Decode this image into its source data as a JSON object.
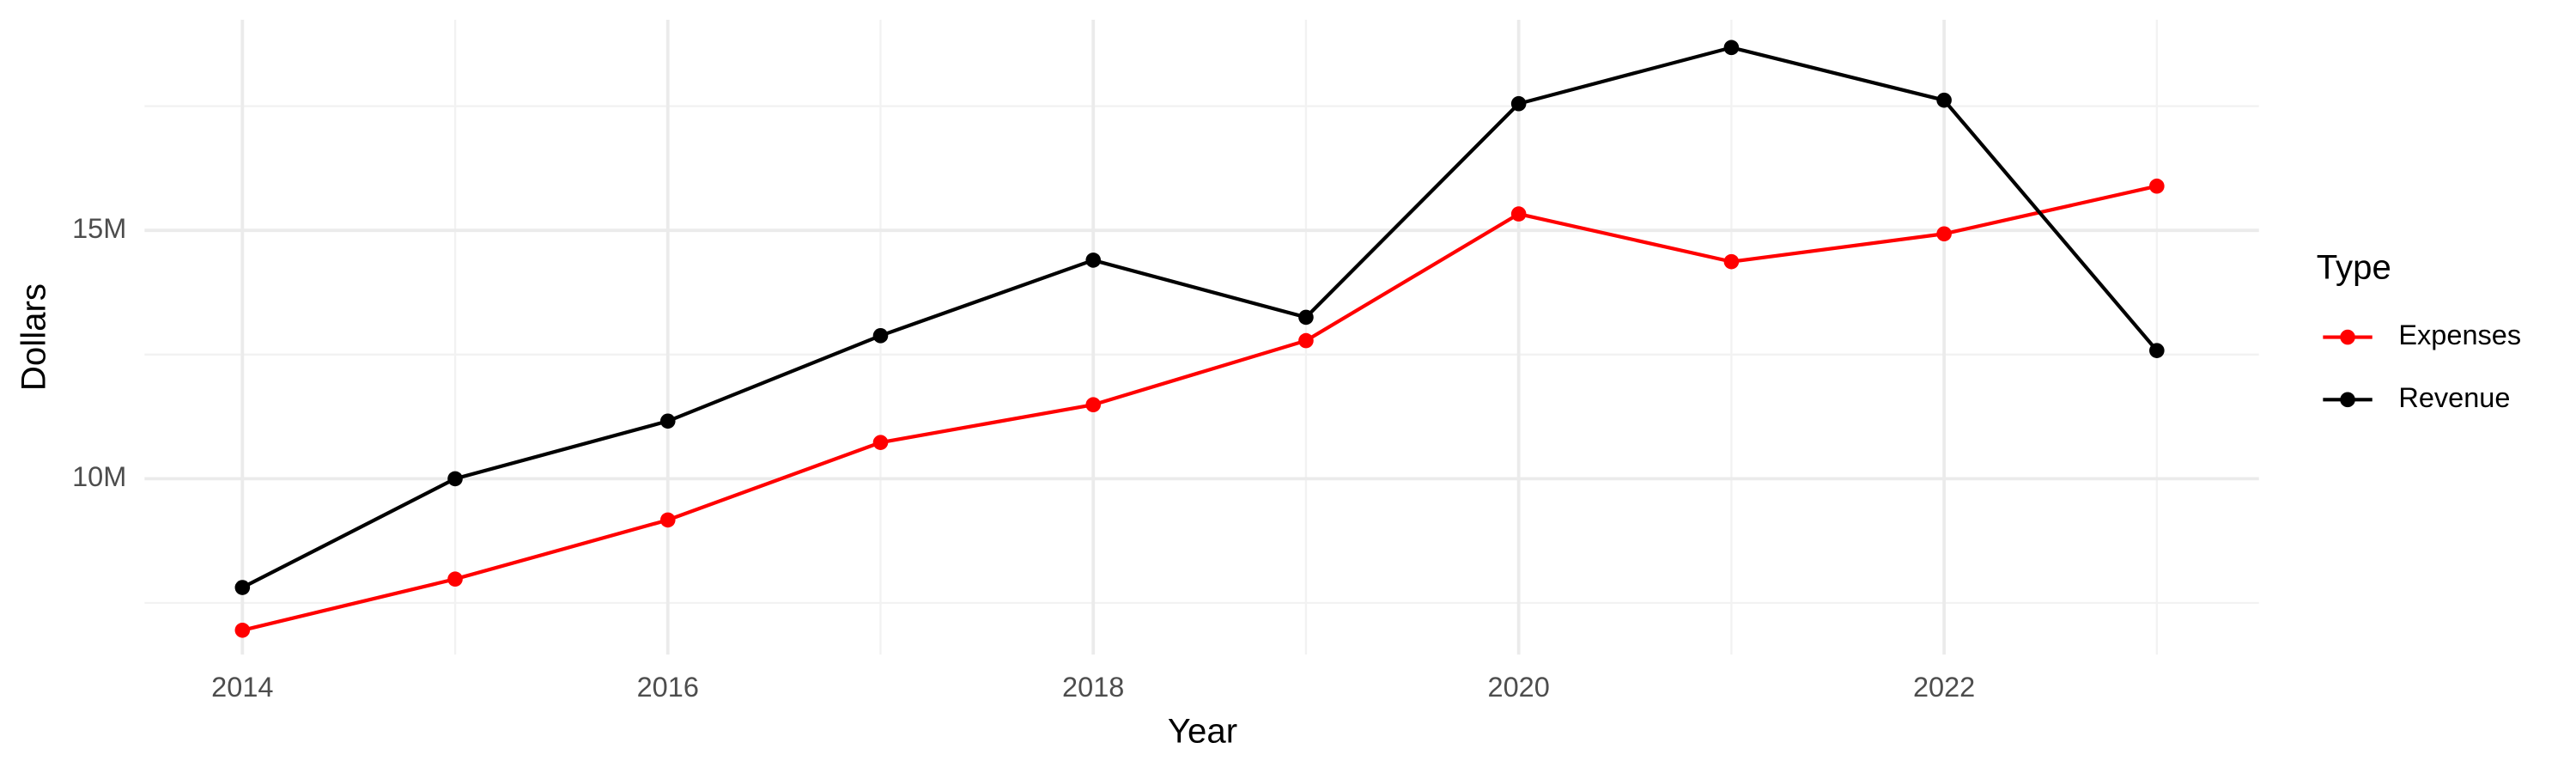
{
  "chart_data": {
    "type": "line",
    "x_label": "Year",
    "y_label": "Dollars",
    "legend_title": "Type",
    "x": [
      2014,
      2015,
      2016,
      2017,
      2018,
      2019,
      2020,
      2021,
      2022,
      2023
    ],
    "series": [
      {
        "name": "Expenses",
        "color": "#ff0000",
        "values": [
          6950000,
          7980000,
          9170000,
          10730000,
          11490000,
          12780000,
          15330000,
          14370000,
          14930000,
          15890000
        ]
      },
      {
        "name": "Revenue",
        "color": "#000000",
        "values": [
          7810000,
          10000000,
          11160000,
          12880000,
          14400000,
          13250000,
          17550000,
          18680000,
          17620000,
          12580000
        ]
      }
    ],
    "xlim": [
      2013.54,
      2023.48
    ],
    "xticks": [
      2014,
      2016,
      2018,
      2020,
      2022
    ],
    "ylim": [
      6460000,
      19240000
    ],
    "yticks": [
      {
        "value": 10000000,
        "label": "10M"
      },
      {
        "value": 15000000,
        "label": "15M"
      }
    ],
    "grid": true,
    "legend": "right"
  }
}
